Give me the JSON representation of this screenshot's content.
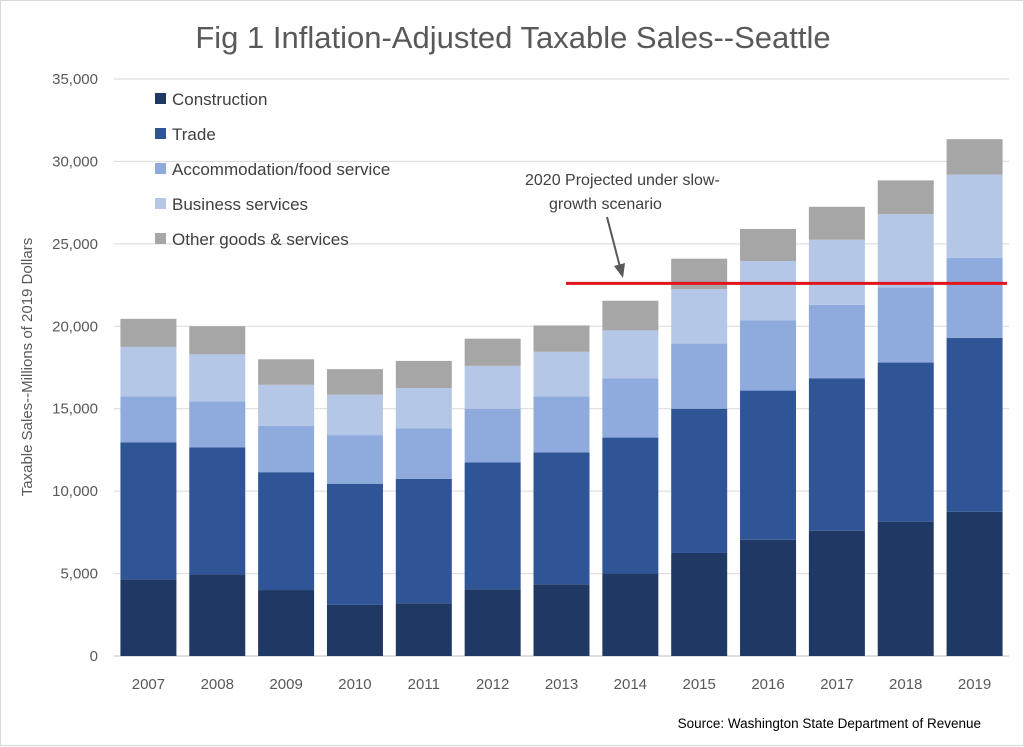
{
  "chart_data": {
    "type": "bar",
    "stacked": true,
    "title": "Fig 1 Inflation-Adjusted Taxable Sales--Seattle",
    "ylabel": "Taxable Sales--Millions of 2019 Dollars",
    "xlabel": "",
    "ylim": [
      0,
      35000
    ],
    "yticks": [
      "0",
      "5,000",
      "10,000",
      "15,000",
      "20,000",
      "25,000",
      "30,000",
      "35,000"
    ],
    "grid": true,
    "legend_position": "top-left",
    "categories": [
      "2007",
      "2008",
      "2009",
      "2010",
      "2011",
      "2012",
      "2013",
      "2014",
      "2015",
      "2016",
      "2017",
      "2018",
      "2019"
    ],
    "series": [
      {
        "name": "Construction",
        "color": "#1f3864",
        "values": [
          4650,
          4950,
          4000,
          3100,
          3200,
          4050,
          4350,
          5000,
          6250,
          7050,
          7600,
          8150,
          8750
        ]
      },
      {
        "name": "Trade",
        "color": "#2f5597",
        "values": [
          8300,
          7700,
          7150,
          7350,
          7550,
          7700,
          8000,
          8250,
          8750,
          9050,
          9250,
          9650,
          10550
        ]
      },
      {
        "name": "Accommodation/food service",
        "color": "#8faadc",
        "values": [
          2800,
          2800,
          2800,
          2950,
          3050,
          3250,
          3400,
          3600,
          3950,
          4250,
          4450,
          4550,
          4850
        ]
      },
      {
        "name": "Business services",
        "color": "#b4c7e7",
        "values": [
          3000,
          2850,
          2500,
          2450,
          2450,
          2600,
          2700,
          2900,
          3300,
          3600,
          3950,
          4450,
          5050
        ]
      },
      {
        "name": "Other goods & services",
        "color": "#a6a6a6",
        "values": [
          1700,
          1700,
          1550,
          1550,
          1650,
          1650,
          1600,
          1800,
          1850,
          1950,
          2000,
          2050,
          2150
        ]
      }
    ],
    "reference_line": {
      "value": 22600,
      "color": "#e0161c",
      "annotation_lines": [
        "2020 Projected under slow-",
        "growth scenario"
      ]
    },
    "source": "Source: Washington State Department of Revenue"
  }
}
